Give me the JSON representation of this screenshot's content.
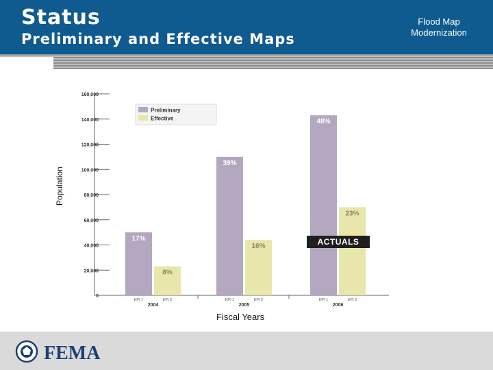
{
  "header": {
    "title": "Status",
    "subtitle": "Preliminary and Effective Maps",
    "side_label": "Flood Map Modernization"
  },
  "footer": {
    "logo_text": "FEMA"
  },
  "annotation": "ACTUALS",
  "colors": {
    "header": "#0f5a8f",
    "preliminary": "#b4a8c0",
    "effective": "#e8e6aa"
  },
  "chart_data": {
    "type": "bar",
    "title": "",
    "xlabel": "Fiscal Years",
    "ylabel": "Population",
    "ylim": [
      0,
      160000
    ],
    "yticks": [
      "0",
      "20,000",
      "40,000",
      "60,000",
      "80,000",
      "100,000",
      "120,000",
      "140,000",
      "160,000"
    ],
    "years": [
      "2004",
      "2005",
      "2006"
    ],
    "subcategories": [
      "KPI 1",
      "KPI 2"
    ],
    "series": [
      {
        "name": "Preliminary",
        "values": [
          50000,
          110000,
          143000
        ],
        "labels": [
          "17%",
          "39%",
          "48%"
        ]
      },
      {
        "name": "Effective",
        "values": [
          23000,
          44000,
          70000
        ],
        "labels": [
          "8%",
          "16%",
          "23%"
        ]
      }
    ],
    "legend_position": "top-left",
    "grid": false
  }
}
